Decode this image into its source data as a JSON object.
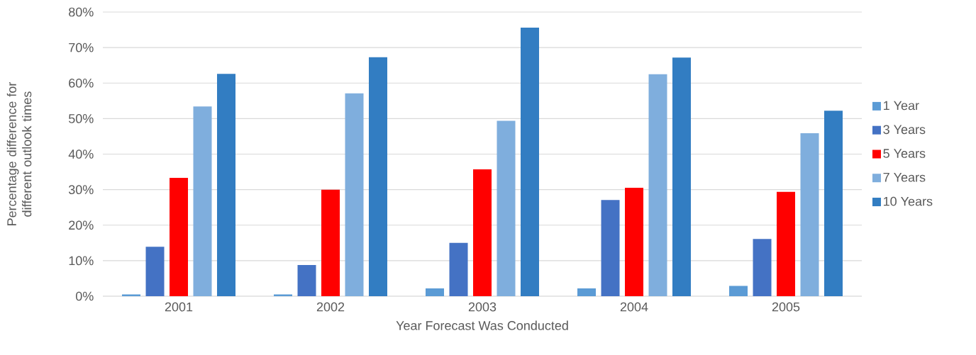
{
  "chart_data": {
    "type": "bar",
    "xlabel": "Year Forecast Was Conducted",
    "ylabel": "Percentage difference for different outlook times",
    "categories": [
      "2001",
      "2002",
      "2003",
      "2004",
      "2005"
    ],
    "series": [
      {
        "name": "1 Year",
        "color": "#5b9bd5",
        "values": [
          0.5,
          0.5,
          2.2,
          2.2,
          2.9
        ]
      },
      {
        "name": "3 Years",
        "color": "#4472c4",
        "values": [
          13.9,
          8.8,
          15.0,
          27.1,
          16.1
        ]
      },
      {
        "name": "5 Years",
        "color": "#ff0000",
        "values": [
          33.3,
          30.0,
          35.7,
          30.5,
          29.4
        ]
      },
      {
        "name": "7 Years",
        "color": "#7faedd",
        "values": [
          53.4,
          57.1,
          49.4,
          62.5,
          45.9
        ]
      },
      {
        "name": "10 Years",
        "color": "#327dc2",
        "values": [
          62.6,
          67.3,
          75.6,
          67.2,
          52.2
        ]
      }
    ],
    "ylim": [
      0,
      80
    ],
    "yticks": [
      {
        "value": 0,
        "label": "0%"
      },
      {
        "value": 10,
        "label": "10%"
      },
      {
        "value": 20,
        "label": "20%"
      },
      {
        "value": 30,
        "label": "30%"
      },
      {
        "value": 40,
        "label": "40%"
      },
      {
        "value": 50,
        "label": "50%"
      },
      {
        "value": 60,
        "label": "60%"
      },
      {
        "value": 70,
        "label": "70%"
      },
      {
        "value": 80,
        "label": "80%"
      }
    ],
    "grid": "y",
    "legend": "right"
  }
}
